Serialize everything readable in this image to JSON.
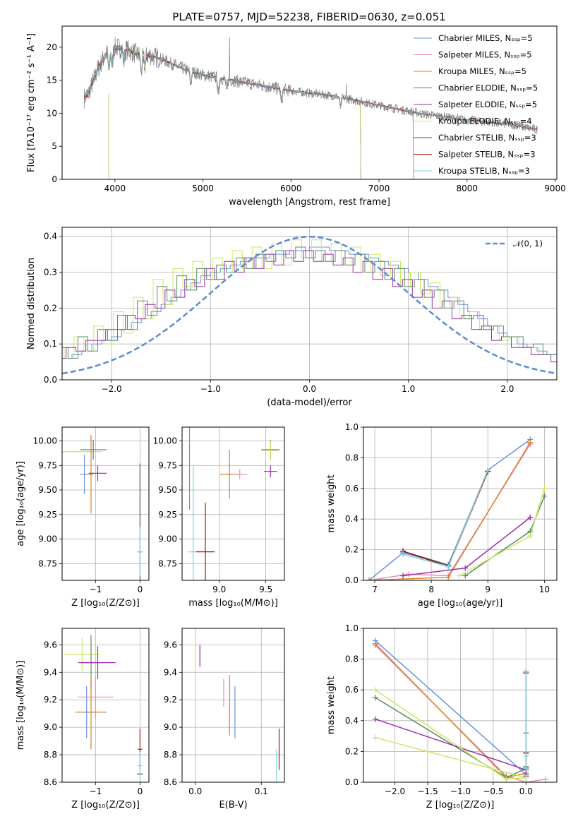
{
  "title": "PLATE=0757, MJD=52238, FIBERID=0630, z=0.051",
  "colors": {
    "chabrier_miles": "#6f8fe0",
    "salpeter_miles": "#ee8cb4",
    "kroupa_miles": "#d9822b",
    "chabrier_elodie": "#5c8a66",
    "salpeter_elodie": "#9b2fae",
    "kroupa_elodie": "#cbe85f",
    "chabrier_stelib": "#555555",
    "salpeter_stelib": "#a31515",
    "kroupa_stelib": "#7fd3df",
    "observed": "#808080",
    "normal": "#5b8bd6",
    "grid": "#b0b0b0"
  },
  "chart_data": [
    {
      "id": "spectrum",
      "type": "line",
      "xlabel": "wavelength [Angstrom, rest frame]",
      "ylabel": "Flux [fλ10⁻¹⁷ erg cm⁻² s⁻¹ A⁻¹]",
      "xlim": [
        3400,
        9020
      ],
      "ylim": [
        0,
        23.2
      ],
      "xticks": [
        4000,
        5000,
        6000,
        7000,
        8000,
        9000
      ],
      "yticks": [
        0,
        5,
        10,
        15,
        20
      ],
      "legend_position": "top-right",
      "continuum": {
        "x": [
          3650,
          3700,
          3800,
          3900,
          3950,
          4000,
          4100,
          4200,
          4300,
          4400,
          4600,
          4800,
          5000,
          5200,
          5500,
          6000,
          6500,
          7000,
          7500,
          8000,
          8500,
          8800
        ],
        "y": [
          12.3,
          13.0,
          16.5,
          19.0,
          19.6,
          20.0,
          19.8,
          19.3,
          18.6,
          18.8,
          17.8,
          16.6,
          15.8,
          15.3,
          14.6,
          13.4,
          12.6,
          11.2,
          9.9,
          9.0,
          8.3,
          7.5
        ]
      },
      "series": [
        {
          "name": "Chabrier MILES, Nₛₛₚ=5",
          "color_key": "chabrier_miles"
        },
        {
          "name": "Salpeter MILES, Nₛₛₚ=5",
          "color_key": "salpeter_miles"
        },
        {
          "name": "Kroupa MILES, Nₛₛₚ=5",
          "color_key": "kroupa_miles"
        },
        {
          "name": "Chabrier ELODIE, Nₛₛₚ=5",
          "color_key": "chabrier_elodie"
        },
        {
          "name": "Salpeter ELODIE, Nₛₛₚ=5",
          "color_key": "salpeter_elodie"
        },
        {
          "name": "Kroupa ELODIE, Nₛₛₚ=4",
          "color_key": "kroupa_elodie"
        },
        {
          "name": "Chabrier STELIB, Nₛₛₚ=3",
          "color_key": "chabrier_stelib"
        },
        {
          "name": "Salpeter STELIB, Nₛₛₚ=3",
          "color_key": "salpeter_stelib"
        },
        {
          "name": "Kroupa STELIB, Nₛₛₚ=3",
          "color_key": "kroupa_stelib"
        }
      ]
    },
    {
      "id": "residuals",
      "type": "line",
      "xlabel": "(data-model)/error",
      "ylabel": "Normed distribution",
      "xlim": [
        -2.5,
        2.5
      ],
      "ylim": [
        0,
        0.425
      ],
      "xticks": [
        -2,
        -1,
        0,
        1,
        2
      ],
      "yticks": [
        0.0,
        0.1,
        0.2,
        0.3,
        0.4
      ],
      "legend_label": "𝒩(0, 1)",
      "legend_position": "top-right",
      "bin_width": 0.1,
      "histograms": [
        {
          "color_key": "chabrier_miles",
          "values": [
            0.03,
            0.03,
            0.04,
            0.04,
            0.05,
            0.06,
            0.07,
            0.08,
            0.1,
            0.11,
            0.12,
            0.14,
            0.16,
            0.17,
            0.19,
            0.21,
            0.23,
            0.25,
            0.27,
            0.29,
            0.3,
            0.31,
            0.32,
            0.33,
            0.34,
            0.34,
            0.35,
            0.35,
            0.36,
            0.36,
            0.37,
            0.37,
            0.36,
            0.36,
            0.35,
            0.35,
            0.34,
            0.33,
            0.32,
            0.31,
            0.3,
            0.28,
            0.26,
            0.25,
            0.23,
            0.21,
            0.19,
            0.17,
            0.15,
            0.13,
            0.12,
            0.1,
            0.09,
            0.08,
            0.07,
            0.06,
            0.05,
            0.05,
            0.04,
            0.04
          ]
        },
        {
          "color_key": "kroupa_elodie",
          "values": [
            0.05,
            0.02,
            0.07,
            0.04,
            0.09,
            0.06,
            0.12,
            0.08,
            0.15,
            0.1,
            0.19,
            0.13,
            0.23,
            0.17,
            0.28,
            0.21,
            0.31,
            0.26,
            0.33,
            0.28,
            0.34,
            0.3,
            0.36,
            0.31,
            0.37,
            0.31,
            0.38,
            0.32,
            0.39,
            0.34,
            0.39,
            0.33,
            0.38,
            0.32,
            0.37,
            0.3,
            0.35,
            0.29,
            0.33,
            0.26,
            0.3,
            0.24,
            0.27,
            0.2,
            0.23,
            0.17,
            0.19,
            0.14,
            0.15,
            0.11,
            0.12,
            0.09,
            0.09,
            0.07,
            0.07,
            0.05,
            0.05,
            0.04,
            0.04,
            0.03
          ]
        },
        {
          "color_key": "salpeter_elodie",
          "values": [
            0.03,
            0.05,
            0.04,
            0.07,
            0.06,
            0.09,
            0.08,
            0.11,
            0.11,
            0.14,
            0.14,
            0.18,
            0.17,
            0.21,
            0.2,
            0.25,
            0.23,
            0.28,
            0.26,
            0.31,
            0.28,
            0.33,
            0.3,
            0.34,
            0.31,
            0.35,
            0.32,
            0.36,
            0.33,
            0.36,
            0.33,
            0.35,
            0.32,
            0.34,
            0.3,
            0.33,
            0.28,
            0.31,
            0.26,
            0.28,
            0.23,
            0.25,
            0.2,
            0.22,
            0.17,
            0.18,
            0.14,
            0.15,
            0.11,
            0.12,
            0.09,
            0.09,
            0.07,
            0.07,
            0.05,
            0.05,
            0.04,
            0.04,
            0.03,
            0.03
          ]
        },
        {
          "color_key": "chabrier_elodie",
          "values": [
            0.08,
            0.03,
            0.06,
            0.05,
            0.09,
            0.06,
            0.12,
            0.08,
            0.14,
            0.11,
            0.18,
            0.14,
            0.22,
            0.18,
            0.26,
            0.22,
            0.29,
            0.25,
            0.31,
            0.28,
            0.32,
            0.3,
            0.34,
            0.31,
            0.35,
            0.33,
            0.36,
            0.34,
            0.37,
            0.34,
            0.36,
            0.33,
            0.36,
            0.32,
            0.35,
            0.3,
            0.33,
            0.28,
            0.31,
            0.26,
            0.28,
            0.23,
            0.25,
            0.2,
            0.22,
            0.17,
            0.18,
            0.14,
            0.15,
            0.12,
            0.12,
            0.09,
            0.1,
            0.07,
            0.07,
            0.06,
            0.05,
            0.05,
            0.04,
            0.04
          ]
        }
      ]
    },
    {
      "id": "age-vs-z",
      "type": "scatter",
      "xlabel": "Z [log₁₀(Z/Z⊙)]",
      "ylabel": "age  [log₁₀(age/yr)]",
      "xlim": [
        -1.75,
        0.2
      ],
      "ylim": [
        8.58,
        10.14
      ],
      "xticks": [
        -1,
        0
      ],
      "yticks": [
        8.75,
        9.0,
        9.25,
        9.5,
        9.75,
        10.0
      ],
      "points": [
        {
          "color_key": "kroupa_elodie",
          "x": -1.3,
          "y": 9.89,
          "xerr": 0.45,
          "yerr": 0.0
        },
        {
          "color_key": "chabrier_elodie",
          "x": -1.05,
          "y": 9.91,
          "xerr": 0.3,
          "yerr": 0.1
        },
        {
          "color_key": "kroupa_miles",
          "x": -1.1,
          "y": 9.66,
          "xerr": 0.05,
          "yerr": 0.4
        },
        {
          "color_key": "chabrier_miles",
          "x": -1.25,
          "y": 9.66,
          "xerr": 0.1,
          "yerr": 0.2
        },
        {
          "color_key": "salpeter_elodie",
          "x": -0.95,
          "y": 9.67,
          "xerr": 0.2,
          "yerr": 0.08
        },
        {
          "color_key": "chabrier_stelib",
          "x": 0.0,
          "y": 8.87,
          "xerr": 0.05,
          "yerr": 0.9
        },
        {
          "color_key": "kroupa_stelib",
          "x": 0.0,
          "y": 8.87,
          "xerr": 0.04,
          "yerr": 0.25
        }
      ]
    },
    {
      "id": "age-vs-mass",
      "type": "scatter",
      "xlabel": "mass [log₁₀(M/M⊙)]",
      "ylabel": "",
      "xlim": [
        8.6,
        9.7
      ],
      "ylim": [
        8.58,
        10.14
      ],
      "xticks": [
        9.0,
        9.5
      ],
      "yticks": [
        8.75,
        9.0,
        9.25,
        9.5,
        9.75,
        10.0
      ],
      "points": [
        {
          "color_key": "chabrier_miles",
          "x": 8.68,
          "y": 9.75,
          "xerr": 0.0,
          "yerr": 0.45
        },
        {
          "color_key": "kroupa_stelib",
          "x": 8.72,
          "y": 8.87,
          "xerr": 0.05,
          "yerr": 0.87
        },
        {
          "color_key": "salpeter_stelib",
          "x": 8.85,
          "y": 8.87,
          "xerr": 0.1,
          "yerr": 0.5
        },
        {
          "color_key": "kroupa_miles",
          "x": 9.11,
          "y": 9.66,
          "xerr": 0.1,
          "yerr": 0.25
        },
        {
          "color_key": "salpeter_miles",
          "x": 9.22,
          "y": 9.66,
          "xerr": 0.08,
          "yerr": 0.05
        },
        {
          "color_key": "salpeter_elodie",
          "x": 9.55,
          "y": 9.69,
          "xerr": 0.07,
          "yerr": 0.06
        },
        {
          "color_key": "chabrier_elodie",
          "x": 9.55,
          "y": 9.91,
          "xerr": 0.1,
          "yerr": 0.1
        },
        {
          "color_key": "kroupa_elodie",
          "x": 9.55,
          "y": 9.9,
          "xerr": 0.08,
          "yerr": 0.1
        }
      ]
    },
    {
      "id": "mass-weight-vs-age",
      "type": "line",
      "xlabel": "age  [log₁₀(age/yr)]",
      "ylabel": "mass weight",
      "xlim": [
        6.8,
        10.22
      ],
      "ylim": [
        0,
        1
      ],
      "xticks": [
        7,
        8,
        9,
        10
      ],
      "yticks": [
        0.0,
        0.2,
        0.4,
        0.6,
        0.8,
        1.0
      ],
      "series": [
        {
          "color_key": "chabrier_miles",
          "x": [
            6.9,
            7.5,
            8.3,
            9.0,
            9.75
          ],
          "y": [
            0.0,
            0.18,
            0.1,
            0.72,
            0.92
          ]
        },
        {
          "color_key": "salpeter_miles",
          "x": [
            6.9,
            7.6,
            8.3,
            9.75
          ],
          "y": [
            0.0,
            0.04,
            0.03,
            0.89
          ]
        },
        {
          "color_key": "kroupa_miles",
          "x": [
            6.9,
            8.3,
            9.75
          ],
          "y": [
            0.0,
            0.02,
            0.9
          ]
        },
        {
          "color_key": "chabrier_elodie",
          "x": [
            8.6,
            9.75,
            10.0
          ],
          "y": [
            0.03,
            0.32,
            0.55
          ]
        },
        {
          "color_key": "salpeter_elodie",
          "x": [
            7.5,
            8.6,
            9.75
          ],
          "y": [
            0.03,
            0.08,
            0.41
          ]
        },
        {
          "color_key": "kroupa_elodie",
          "x": [
            8.5,
            9.75,
            10.0
          ],
          "y": [
            0.03,
            0.29,
            0.6
          ]
        },
        {
          "color_key": "chabrier_stelib",
          "x": [
            7.5,
            8.3,
            9.0
          ],
          "y": [
            0.19,
            0.1,
            0.71
          ]
        },
        {
          "color_key": "salpeter_stelib",
          "x": [
            7.5,
            8.3,
            9.0
          ],
          "y": [
            0.19,
            0.09,
            0.71
          ]
        },
        {
          "color_key": "kroupa_stelib",
          "x": [
            7.5,
            8.3,
            9.0
          ],
          "y": [
            0.17,
            0.09,
            0.72
          ]
        }
      ]
    },
    {
      "id": "mass-vs-z",
      "type": "scatter",
      "xlabel": "Z [log₁₀(Z/Z⊙)]",
      "ylabel": "mass [log₁₀(M/M⊙)]",
      "xlim": [
        -1.75,
        0.2
      ],
      "ylim": [
        8.6,
        9.72
      ],
      "xticks": [
        -1,
        0
      ],
      "yticks": [
        8.6,
        8.8,
        9.0,
        9.2,
        9.4,
        9.6
      ],
      "points": [
        {
          "color_key": "kroupa_elodie",
          "x": -1.3,
          "y": 9.53,
          "xerr": 0.4,
          "yerr": 0.12
        },
        {
          "color_key": "chabrier_elodie",
          "x": -1.1,
          "y": 9.47,
          "xerr": 0.3,
          "yerr": 0.2
        },
        {
          "color_key": "salpeter_elodie",
          "x": -0.95,
          "y": 9.47,
          "xerr": 0.4,
          "yerr": 0.12
        },
        {
          "color_key": "salpeter_miles",
          "x": -1.0,
          "y": 9.22,
          "xerr": 0.4,
          "yerr": 0.15
        },
        {
          "color_key": "kroupa_miles",
          "x": -1.1,
          "y": 9.11,
          "xerr": 0.35,
          "yerr": 0.27
        },
        {
          "color_key": "chabrier_miles",
          "x": -1.2,
          "y": 9.11,
          "xerr": 0.08,
          "yerr": 0.19
        },
        {
          "color_key": "salpeter_stelib",
          "x": 0.0,
          "y": 8.84,
          "xerr": 0.05,
          "yerr": 0.15
        },
        {
          "color_key": "kroupa_stelib",
          "x": 0.0,
          "y": 8.72,
          "xerr": 0.05,
          "yerr": 0.1
        },
        {
          "color_key": "chabrier_stelib",
          "x": 0.0,
          "y": 8.66,
          "xerr": 0.07,
          "yerr": 0.0
        }
      ]
    },
    {
      "id": "mass-vs-ebv",
      "type": "scatter",
      "xlabel": "E(B-V)",
      "ylabel": "",
      "xlim": [
        -0.02,
        0.135
      ],
      "ylim": [
        8.6,
        9.72
      ],
      "xticks": [
        0.0,
        0.1
      ],
      "yticks": [
        8.6,
        8.8,
        9.0,
        9.2,
        9.4,
        9.6
      ],
      "points": [
        {
          "color_key": "kroupa_elodie",
          "x": 0.0,
          "y": 9.55,
          "xerr": 0.0,
          "yerr": 0.12
        },
        {
          "color_key": "salpeter_elodie",
          "x": 0.007,
          "y": 9.52,
          "xerr": 0.0,
          "yerr": 0.08
        },
        {
          "color_key": "salpeter_miles",
          "x": 0.043,
          "y": 9.25,
          "xerr": 0.0,
          "yerr": 0.1
        },
        {
          "color_key": "kroupa_miles",
          "x": 0.052,
          "y": 9.16,
          "xerr": 0.0,
          "yerr": 0.22
        },
        {
          "color_key": "chabrier_miles",
          "x": 0.06,
          "y": 9.11,
          "xerr": 0.0,
          "yerr": 0.19
        },
        {
          "color_key": "kroupa_stelib",
          "x": 0.123,
          "y": 8.71,
          "xerr": 0.0,
          "yerr": 0.13
        },
        {
          "color_key": "salpeter_stelib",
          "x": 0.127,
          "y": 8.84,
          "xerr": 0.0,
          "yerr": 0.15
        }
      ]
    },
    {
      "id": "mass-weight-vs-z",
      "type": "line",
      "xlabel": "Z [log₁₀(Z/Z⊙)]",
      "ylabel": "mass weight",
      "xlim": [
        -2.48,
        0.47
      ],
      "ylim": [
        0,
        1
      ],
      "xticks": [
        -2.0,
        -1.5,
        -1.0,
        -0.5,
        0.0
      ],
      "yticks": [
        0.0,
        0.2,
        0.4,
        0.6,
        0.8,
        1.0
      ],
      "series": [
        {
          "color_key": "chabrier_miles",
          "x": [
            -2.3,
            0.0,
            0.0,
            0.0
          ],
          "y": [
            0.92,
            0.05,
            0.19,
            0.72
          ]
        },
        {
          "color_key": "salpeter_miles",
          "x": [
            -2.3,
            -0.3,
            0.0,
            0.3
          ],
          "y": [
            0.89,
            0.04,
            0.0,
            0.02
          ]
        },
        {
          "color_key": "kroupa_miles",
          "x": [
            -2.3,
            -0.3,
            0.0
          ],
          "y": [
            0.9,
            0.03,
            0.06
          ]
        },
        {
          "color_key": "chabrier_elodie",
          "x": [
            -2.3,
            -0.3,
            0.0,
            0.0
          ],
          "y": [
            0.55,
            0.03,
            0.09,
            0.32
          ]
        },
        {
          "color_key": "salpeter_elodie",
          "x": [
            -2.3,
            0.0,
            0.0
          ],
          "y": [
            0.41,
            0.08,
            0.04
          ]
        },
        {
          "color_key": "kroupa_elodie",
          "x": [
            -2.3,
            -0.3,
            0.0,
            -2.3
          ],
          "y": [
            0.6,
            0.02,
            0.03,
            0.29
          ]
        },
        {
          "color_key": "chabrier_stelib",
          "x": [
            0.0,
            0.0,
            0.0
          ],
          "y": [
            0.71,
            0.19,
            0.1
          ]
        },
        {
          "color_key": "salpeter_stelib",
          "x": [
            0.0,
            0.0,
            0.0
          ],
          "y": [
            0.71,
            0.19,
            0.09
          ]
        },
        {
          "color_key": "kroupa_stelib",
          "x": [
            0.0,
            0.0,
            0.0
          ],
          "y": [
            0.72,
            0.17,
            0.09
          ]
        }
      ]
    }
  ]
}
